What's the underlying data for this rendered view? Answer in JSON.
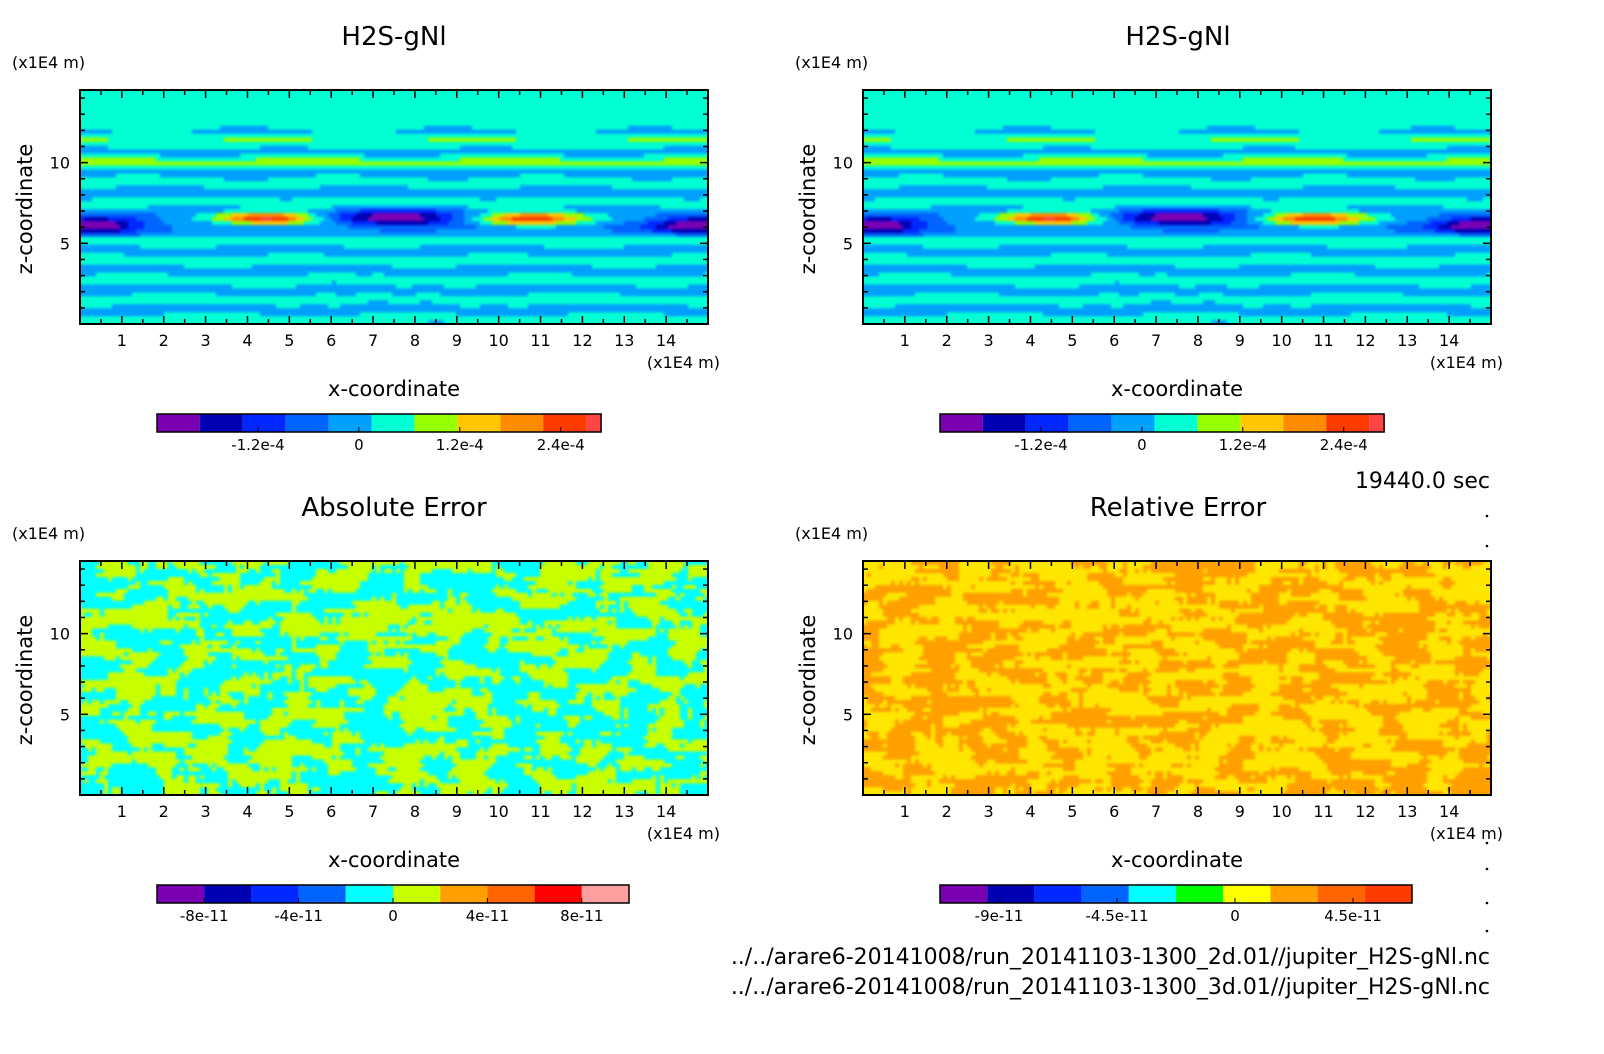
{
  "time_label": "19440.0 sec",
  "files": [
    "../../arare6-20141008/run_20141103-1300_2d.01//jupiter_H2S-gNl.nc",
    "../../arare6-20141008/run_20141103-1300_3d.01//jupiter_H2S-gNl.nc"
  ],
  "chart_data": [
    {
      "type": "heatmap",
      "title": "H2S-gNl",
      "xlabel": "x-coordinate",
      "ylabel": "z-coordinate",
      "x_unit": "(x1E4 m)",
      "y_unit": "(x1E4 m)",
      "xlim": [
        0,
        15
      ],
      "ylim": [
        0,
        14.5
      ],
      "xticks": [
        "1",
        "2",
        "3",
        "4",
        "5",
        "6",
        "7",
        "8",
        "9",
        "10",
        "11",
        "12",
        "13",
        "14"
      ],
      "yticks": [
        "5",
        "10"
      ],
      "colorbar": {
        "colors": [
          "#7a00b4",
          "#0000b4",
          "#0028ff",
          "#0064ff",
          "#00a0ff",
          "#00ffd2",
          "#96ff00",
          "#ffc800",
          "#ff8c00",
          "#ff3c00",
          "#ff4646"
        ],
        "tick_labels": [
          "-1.2e-4",
          "0",
          "1.2e-4",
          "2.4e-4"
        ],
        "tick_values": [
          -0.00012,
          0,
          0.00012,
          0.00024
        ],
        "range": [
          -0.00024,
          0.000288
        ]
      },
      "field": "anomaly"
    },
    {
      "type": "heatmap",
      "title": "H2S-gNl",
      "xlabel": "x-coordinate",
      "ylabel": "z-coordinate",
      "x_unit": "(x1E4 m)",
      "y_unit": "(x1E4 m)",
      "xlim": [
        0,
        15
      ],
      "ylim": [
        0,
        14.5
      ],
      "xticks": [
        "1",
        "2",
        "3",
        "4",
        "5",
        "6",
        "7",
        "8",
        "9",
        "10",
        "11",
        "12",
        "13",
        "14"
      ],
      "yticks": [
        "5",
        "10"
      ],
      "colorbar": {
        "colors": [
          "#7a00b4",
          "#0000b4",
          "#0028ff",
          "#0064ff",
          "#00a0ff",
          "#00ffd2",
          "#96ff00",
          "#ffc800",
          "#ff8c00",
          "#ff3c00",
          "#ff4646"
        ],
        "tick_labels": [
          "-1.2e-4",
          "0",
          "1.2e-4",
          "2.4e-4"
        ],
        "tick_values": [
          -0.00012,
          0,
          0.00012,
          0.00024
        ],
        "range": [
          -0.00024,
          0.000288
        ]
      },
      "field": "anomaly"
    },
    {
      "type": "heatmap",
      "title": "Absolute Error",
      "xlabel": "x-coordinate",
      "ylabel": "z-coordinate",
      "x_unit": "(x1E4 m)",
      "y_unit": "(x1E4 m)",
      "xlim": [
        0,
        15
      ],
      "ylim": [
        0,
        14.5
      ],
      "xticks": [
        "1",
        "2",
        "3",
        "4",
        "5",
        "6",
        "7",
        "8",
        "9",
        "10",
        "11",
        "12",
        "13",
        "14"
      ],
      "yticks": [
        "5",
        "10"
      ],
      "colorbar": {
        "colors": [
          "#7a00b4",
          "#0000b4",
          "#0028ff",
          "#0064ff",
          "#00ffff",
          "#c8ff00",
          "#ffa000",
          "#ff6400",
          "#ff0000",
          "#ffa0a0"
        ],
        "tick_labels": [
          "-8e-11",
          "-4e-11",
          "0",
          "4e-11",
          "8e-11"
        ],
        "tick_values": [
          -8e-11,
          -4e-11,
          0,
          4e-11,
          8e-11
        ],
        "range": [
          -1e-10,
          1e-10
        ]
      },
      "field": "noise",
      "noise_colors": [
        "#00ffff",
        "#c8ff00"
      ]
    },
    {
      "type": "heatmap",
      "title": "Relative Error",
      "xlabel": "x-coordinate",
      "ylabel": "z-coordinate",
      "x_unit": "(x1E4 m)",
      "y_unit": "(x1E4 m)",
      "xlim": [
        0,
        15
      ],
      "ylim": [
        0,
        14.5
      ],
      "xticks": [
        "1",
        "2",
        "3",
        "4",
        "5",
        "6",
        "7",
        "8",
        "9",
        "10",
        "11",
        "12",
        "13",
        "14"
      ],
      "yticks": [
        "5",
        "10"
      ],
      "colorbar": {
        "colors": [
          "#7a00b4",
          "#0000b4",
          "#0028ff",
          "#0064ff",
          "#00ffff",
          "#00ff00",
          "#ffff00",
          "#ffa000",
          "#ff6400",
          "#ff3c00"
        ],
        "tick_labels": [
          "-9e-11",
          "-4.5e-11",
          "0",
          "4.5e-11"
        ],
        "tick_values": [
          -9e-11,
          -4.5e-11,
          0,
          4.5e-11
        ],
        "range": [
          -1.125e-10,
          6.75e-11
        ]
      },
      "field": "noise",
      "noise_colors": [
        "#ffe600",
        "#ffa000"
      ]
    }
  ]
}
